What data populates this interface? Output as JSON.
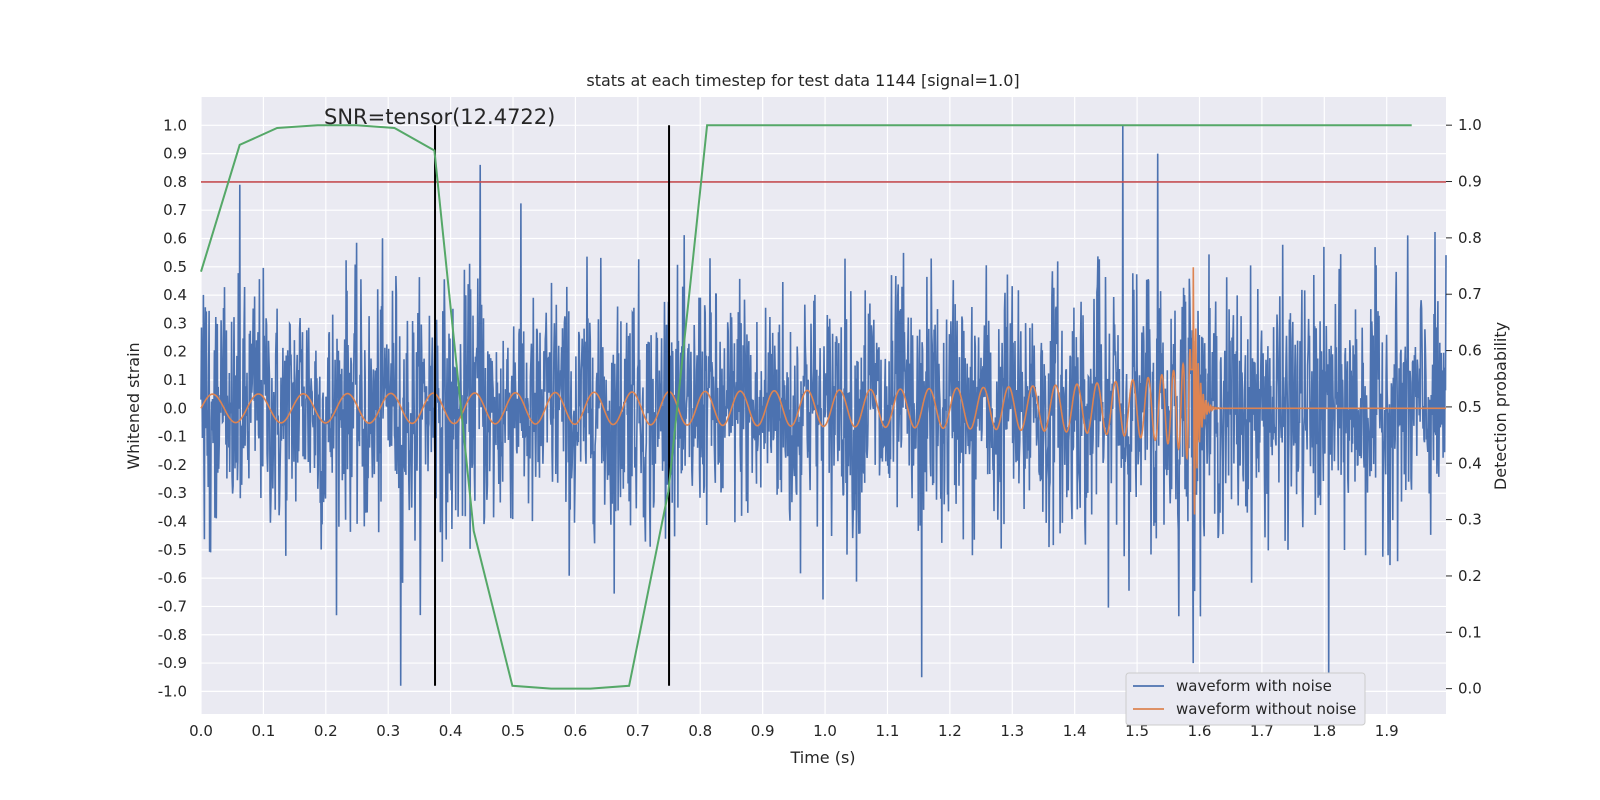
{
  "chart_data": {
    "type": "line",
    "title": "stats at each timestep for test data 1144 [signal=1.0]",
    "xlabel": "Time (s)",
    "ylabel": "Whitened strain",
    "y2label": "Detection probability",
    "annotation": "SNR=tensor(12.4722)",
    "xlim": [
      0,
      1.995
    ],
    "ylim": [
      -1.08,
      1.1
    ],
    "y2lim": [
      -0.045,
      1.05
    ],
    "x_ticks": [
      0.0,
      0.1,
      0.2,
      0.3,
      0.4,
      0.5,
      0.6,
      0.7,
      0.8,
      0.9,
      1.0,
      1.1,
      1.2,
      1.3,
      1.4,
      1.5,
      1.6,
      1.7,
      1.8,
      1.9
    ],
    "y_ticks": [
      -1.0,
      -0.9,
      -0.8,
      -0.7,
      -0.6,
      -0.5,
      -0.4,
      -0.3,
      -0.2,
      -0.1,
      0.0,
      0.1,
      0.2,
      0.3,
      0.4,
      0.5,
      0.6,
      0.7,
      0.8,
      0.9,
      1.0
    ],
    "y2_ticks": [
      0.0,
      0.1,
      0.2,
      0.3,
      0.4,
      0.5,
      0.6,
      0.7,
      0.8,
      0.9,
      1.0
    ],
    "grid": true,
    "legend_position": "lower-right",
    "series": [
      {
        "name": "waveform with noise",
        "color": "#4c72b0",
        "axis": "left",
        "style": "dense random noise, amplitude ~±0.5 with peaks reaching about ±1.0",
        "notable_peaks": [
          [
            0.32,
            -0.98
          ],
          [
            0.447,
            0.86
          ],
          [
            1.477,
            1.0
          ],
          [
            1.533,
            0.9
          ],
          [
            1.807,
            -0.98
          ],
          [
            1.59,
            -0.9
          ],
          [
            1.155,
            -0.95
          ],
          [
            0.062,
            0.79
          ]
        ]
      },
      {
        "name": "waveform without noise",
        "color": "#dd8452",
        "axis": "left",
        "style": "chirp: amplitude 0.05 at t=0 growing to 0.5 at merger t≈1.59, ringdown to 0 by t≈1.62",
        "merger_time": 1.59,
        "peak_amplitude": 0.5
      },
      {
        "color": "#55a868",
        "axis": "right",
        "x": [
          0.0,
          0.062,
          0.122,
          0.187,
          0.249,
          0.31,
          0.374,
          0.437,
          0.499,
          0.561,
          0.624,
          0.686,
          0.749,
          0.811,
          1.94
        ],
        "y": [
          0.74,
          0.965,
          0.995,
          1.0,
          1.0,
          0.995,
          0.955,
          0.28,
          0.005,
          0.0,
          0.0,
          0.005,
          0.35,
          1.0,
          1.0
        ]
      },
      {
        "color": "#c44e52",
        "axis": "left",
        "type": "hline",
        "y": 0.8
      }
    ],
    "vlines": [
      {
        "x": 0.375,
        "y_from": -0.98,
        "y_to": 1.0,
        "color": "#000000"
      },
      {
        "x": 0.75,
        "y_from": -0.98,
        "y_to": 1.0,
        "color": "#000000"
      }
    ]
  },
  "colors": {
    "plot_background": "#eaeaf2",
    "grid": "#ffffff"
  }
}
